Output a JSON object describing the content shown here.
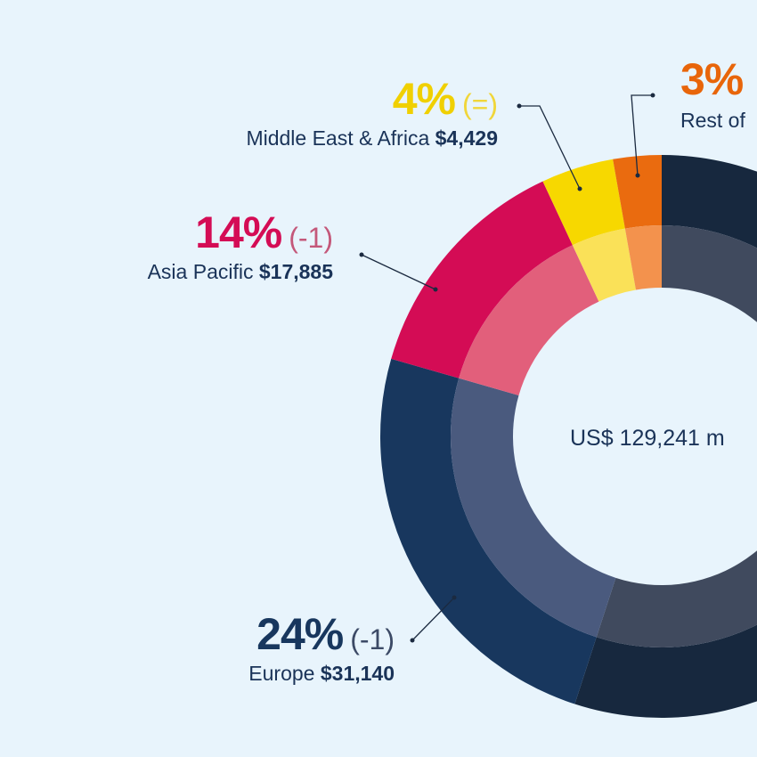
{
  "chart_data": {
    "type": "pie",
    "style": "double-ring donut",
    "title": "",
    "total_label": "US$ 129,241 m",
    "segments": [
      {
        "name": "Europe",
        "percent": "24%",
        "change": "(-1)",
        "amount": "$31,140",
        "value": 31140,
        "outer_color": "#18375e",
        "inner_color": "#4a5a7e",
        "text_color": "#18375e",
        "change_color": "#3c4a66"
      },
      {
        "name": "Asia Pacific",
        "percent": "14%",
        "change": "(-1)",
        "amount": "$17,885",
        "value": 17885,
        "outer_color": "#d40c55",
        "inner_color": "#e25f7b",
        "text_color": "#d40c55",
        "change_color": "#c4587a"
      },
      {
        "name": "Middle East & Africa",
        "percent": "4%",
        "change": "(=)",
        "amount": "$4,429",
        "value": 4429,
        "outer_color": "#f7d800",
        "inner_color": "#fae158",
        "text_color": "#f0d000",
        "change_color": "#f0d63a"
      },
      {
        "name": "Rest of",
        "percent": "3%",
        "change": "",
        "amount": "",
        "value": null,
        "outer_color": "#ea6b0f",
        "inner_color": "#f3924d",
        "text_color": "#e8650a",
        "change_color": "#e8650a"
      }
    ],
    "partial_remainder": {
      "outer_color": "#17283e",
      "inner_color": "#404a5e"
    }
  }
}
